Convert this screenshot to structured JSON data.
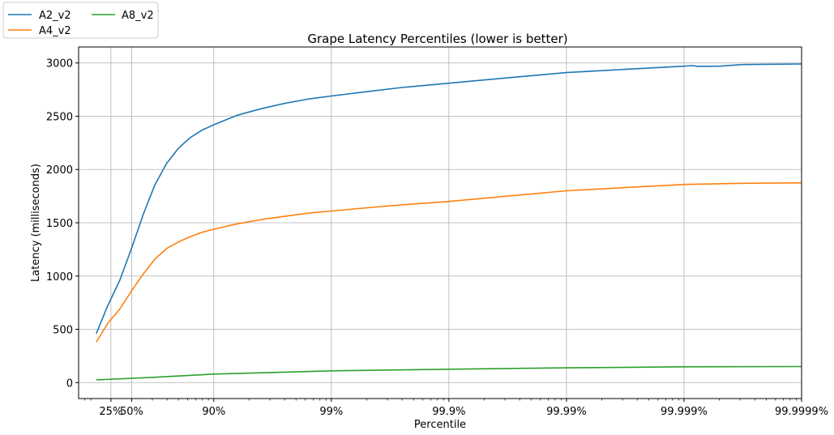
{
  "chart_data": {
    "type": "line",
    "title": "Grape Latency Percentiles (lower is better)",
    "xlabel": "Percentile",
    "ylabel": "Latency (milliseconds)",
    "x_scale": "log-nines",
    "x_range_nines": [
      -0.15,
      6.0
    ],
    "ylim": [
      -150,
      3150
    ],
    "yticks": [
      0,
      500,
      1000,
      1500,
      2000,
      2500,
      3000
    ],
    "xticks": [
      {
        "nines": 0.1249,
        "label": "25%"
      },
      {
        "nines": 0.301,
        "label": "50%"
      },
      {
        "nines": 1,
        "label": "90%"
      },
      {
        "nines": 2,
        "label": "99%"
      },
      {
        "nines": 3,
        "label": "99.9%"
      },
      {
        "nines": 4,
        "label": "99.99%"
      },
      {
        "nines": 5,
        "label": "99.999%"
      },
      {
        "nines": 6,
        "label": "99.9999%"
      }
    ],
    "grid": true,
    "legend_position": "top-left outside",
    "series": [
      {
        "name": "A2_v2",
        "color": "#1f77b4",
        "points": [
          [
            0,
            460
          ],
          [
            0.097,
            720
          ],
          [
            0.2,
            960
          ],
          [
            0.3,
            1260
          ],
          [
            0.4,
            1580
          ],
          [
            0.5,
            1860
          ],
          [
            0.6,
            2060
          ],
          [
            0.7,
            2200
          ],
          [
            0.8,
            2300
          ],
          [
            0.9,
            2370
          ],
          [
            1,
            2420
          ],
          [
            1.2,
            2510
          ],
          [
            1.4,
            2570
          ],
          [
            1.6,
            2620
          ],
          [
            1.8,
            2660
          ],
          [
            2,
            2690
          ],
          [
            2.3,
            2730
          ],
          [
            2.6,
            2770
          ],
          [
            3,
            2810
          ],
          [
            3.5,
            2860
          ],
          [
            4,
            2910
          ],
          [
            4.5,
            2940
          ],
          [
            5,
            2970
          ],
          [
            5.07,
            2975
          ],
          [
            5.12,
            2968
          ],
          [
            5.3,
            2970
          ],
          [
            5.5,
            2985
          ],
          [
            5.75,
            2988
          ],
          [
            6,
            2990
          ]
        ]
      },
      {
        "name": "A4_v2",
        "color": "#ff7f0e",
        "points": [
          [
            0,
            380
          ],
          [
            0.1,
            560
          ],
          [
            0.2,
            690
          ],
          [
            0.3,
            860
          ],
          [
            0.4,
            1020
          ],
          [
            0.5,
            1160
          ],
          [
            0.6,
            1260
          ],
          [
            0.7,
            1320
          ],
          [
            0.8,
            1370
          ],
          [
            0.9,
            1410
          ],
          [
            1,
            1440
          ],
          [
            1.2,
            1490
          ],
          [
            1.4,
            1530
          ],
          [
            1.6,
            1560
          ],
          [
            1.8,
            1590
          ],
          [
            2,
            1610
          ],
          [
            2.5,
            1660
          ],
          [
            3,
            1700
          ],
          [
            3.5,
            1750
          ],
          [
            4,
            1800
          ],
          [
            4.5,
            1830
          ],
          [
            5,
            1860
          ],
          [
            5.5,
            1870
          ],
          [
            6,
            1875
          ]
        ]
      },
      {
        "name": "A8_v2",
        "color": "#2ca02c",
        "points": [
          [
            0,
            25
          ],
          [
            0.5,
            50
          ],
          [
            1,
            80
          ],
          [
            1.5,
            95
          ],
          [
            2,
            110
          ],
          [
            3,
            125
          ],
          [
            4,
            138
          ],
          [
            5,
            148
          ],
          [
            6,
            150
          ]
        ]
      }
    ]
  }
}
